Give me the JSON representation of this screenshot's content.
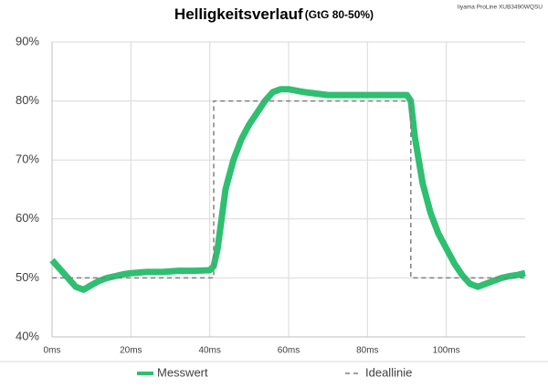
{
  "chart_data": {
    "type": "line",
    "title": "Helligkeitsverlauf",
    "subtitle": "(GtG 80-50%)",
    "annotation": "Iiyama ProLine XUB3490WQSU",
    "series": [
      {
        "name": "Messwert",
        "color": "#2fbf71",
        "dashed": false,
        "x": [
          0,
          2,
          4,
          6,
          8,
          10,
          12,
          14,
          16,
          18,
          20,
          24,
          28,
          32,
          36,
          40,
          41,
          42,
          44,
          46,
          48,
          50,
          52,
          54,
          56,
          58,
          60,
          64,
          70,
          76,
          82,
          88,
          90,
          91,
          92,
          94,
          96,
          98,
          100,
          102,
          104,
          106,
          108,
          110,
          112,
          114,
          116,
          118,
          120
        ],
        "values": [
          53,
          51.5,
          50,
          48.5,
          48,
          48.8,
          49.5,
          50,
          50.3,
          50.6,
          50.8,
          51,
          51,
          51.2,
          51.2,
          51.3,
          52,
          55,
          65,
          70,
          73.5,
          76,
          78,
          80,
          81.5,
          82,
          82,
          81.5,
          81,
          81,
          81,
          81,
          81,
          80,
          74,
          66,
          61,
          57.5,
          55,
          52.5,
          50.5,
          49,
          48.5,
          49,
          49.5,
          50,
          50.3,
          50.5,
          50.8
        ]
      },
      {
        "name": "Ideallinie",
        "color": "#808080",
        "dashed": true,
        "x": [
          0,
          41,
          41,
          91,
          91,
          120
        ],
        "values": [
          50,
          50,
          80,
          80,
          50,
          50
        ]
      }
    ],
    "xlim": [
      0,
      120
    ],
    "xticks": [
      {
        "value": 0,
        "label": "0ms"
      },
      {
        "value": 20,
        "label": "20ms"
      },
      {
        "value": 40,
        "label": "40ms"
      },
      {
        "value": 60,
        "label": "60ms"
      },
      {
        "value": 80,
        "label": "80ms"
      },
      {
        "value": 100,
        "label": "100ms"
      }
    ],
    "ylim": [
      40,
      90
    ],
    "yticks": [
      {
        "value": 40,
        "label": "40%"
      },
      {
        "value": 50,
        "label": "50%"
      },
      {
        "value": 60,
        "label": "60%"
      },
      {
        "value": 70,
        "label": "70%"
      },
      {
        "value": 80,
        "label": "80%"
      },
      {
        "value": 90,
        "label": "90%"
      }
    ],
    "grid": true
  }
}
